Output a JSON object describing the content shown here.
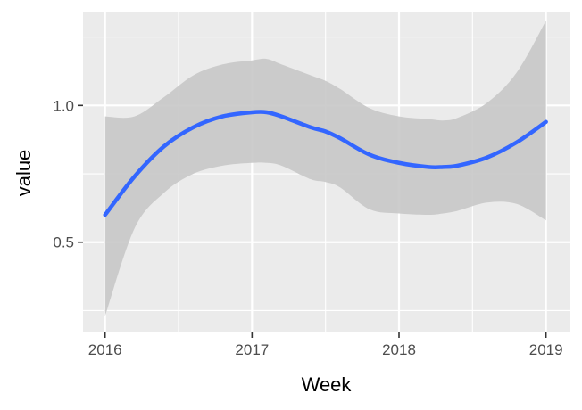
{
  "chart_data": {
    "type": "line",
    "xlabel": "Week",
    "ylabel": "value",
    "xlim": [
      2015.85,
      2019.16
    ],
    "ylim": [
      0.17,
      1.34
    ],
    "x_ticks": [
      2016,
      2017,
      2018,
      2019
    ],
    "x_tick_labels": [
      "2016",
      "2017",
      "2018",
      "2019"
    ],
    "y_ticks": [
      0.5,
      1.0
    ],
    "y_tick_labels": [
      "0.5",
      "1.0"
    ],
    "x_minor": [
      2016.5,
      2017.5,
      2018.5
    ],
    "y_minor": [
      0.25,
      0.75,
      1.25
    ],
    "grid": true,
    "legend": "none",
    "colors": {
      "panel": "#ebebeb",
      "grid": "#ffffff",
      "line": "#3366ff",
      "ribbon": "#c8c8c8"
    },
    "series": [
      {
        "x": [
          2016.0,
          2016.2,
          2016.4,
          2016.6,
          2016.8,
          2017.0,
          2017.1,
          2017.2,
          2017.4,
          2017.5,
          2017.6,
          2017.8,
          2018.0,
          2018.2,
          2018.3,
          2018.4,
          2018.6,
          2018.8,
          2019.0
        ],
        "y": [
          0.6,
          0.74,
          0.85,
          0.92,
          0.96,
          0.975,
          0.975,
          0.96,
          0.92,
          0.905,
          0.88,
          0.82,
          0.79,
          0.775,
          0.775,
          0.78,
          0.81,
          0.865,
          0.94
        ],
        "lower": [
          0.23,
          0.55,
          0.68,
          0.75,
          0.78,
          0.79,
          0.79,
          0.78,
          0.73,
          0.72,
          0.7,
          0.62,
          0.605,
          0.6,
          0.605,
          0.615,
          0.645,
          0.64,
          0.58
        ],
        "upper": [
          0.96,
          0.96,
          1.03,
          1.11,
          1.15,
          1.165,
          1.17,
          1.15,
          1.11,
          1.09,
          1.06,
          0.99,
          0.96,
          0.95,
          0.945,
          0.955,
          1.01,
          1.12,
          1.31
        ]
      }
    ]
  }
}
